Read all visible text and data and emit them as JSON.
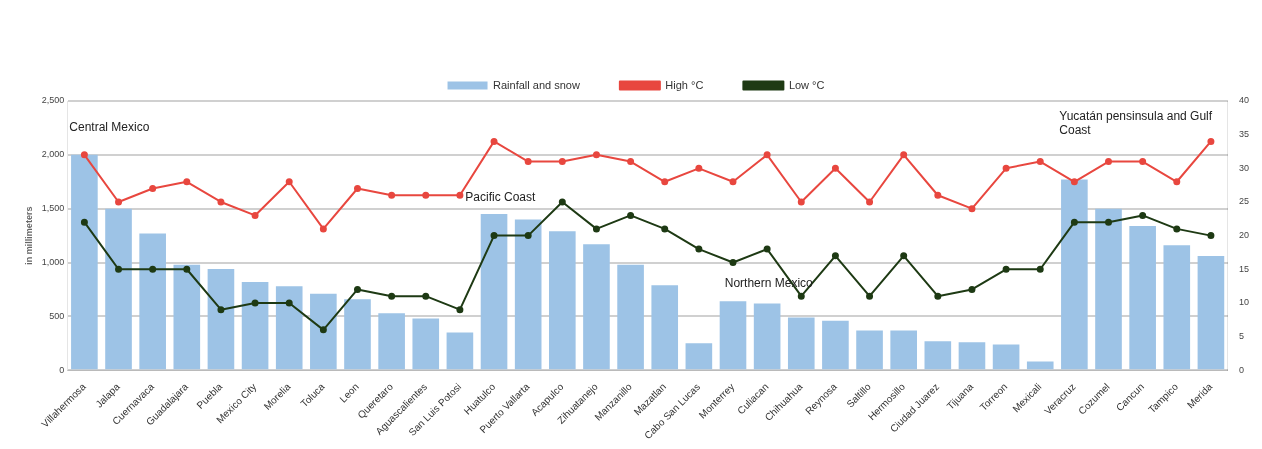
{
  "chart_data": {
    "type": "bar",
    "categories": [
      "Villahermosa",
      "Jalapa",
      "Cuernavaca",
      "Guadalajara",
      "Puebla",
      "Mexico City",
      "Morelia",
      "Toluca",
      "Leon",
      "Queretaro",
      "Aguascalientes",
      "San Luis Potosi",
      "Huatulco",
      "Puerto Vallarta",
      "Acapulco",
      "Zihuatanejo",
      "Manzanillo",
      "Mazatlan",
      "Cabo San Lucas",
      "Monterrey",
      "Culiacan",
      "Chihuahua",
      "Reynosa",
      "Saltillo",
      "Hermosillo",
      "Ciudad Juarez",
      "Tijuana",
      "Torreon",
      "Mexicali",
      "Veracruz",
      "Cozumel",
      "Cancun",
      "Tampico",
      "Merida"
    ],
    "series": [
      {
        "name": "Rainfall and snow",
        "color": "#9dc3e6",
        "values": [
          2000,
          1500,
          1270,
          980,
          940,
          820,
          780,
          710,
          660,
          530,
          480,
          350,
          1450,
          1400,
          1290,
          1170,
          980,
          790,
          250,
          640,
          620,
          490,
          460,
          370,
          370,
          270,
          260,
          240,
          80,
          1770,
          1500,
          1340,
          1160,
          1060
        ]
      },
      {
        "name": "High °C",
        "type": "line",
        "axis": "y2",
        "color": "#e8473f",
        "values": [
          32,
          25,
          27,
          28,
          25,
          23,
          28,
          21,
          27,
          26,
          26,
          26,
          34,
          31,
          31,
          32,
          31,
          28,
          30,
          28,
          32,
          25,
          30,
          25,
          32,
          26,
          24,
          30,
          31,
          28,
          31,
          31,
          28,
          34
        ]
      },
      {
        "name": "Low °C",
        "type": "line",
        "axis": "y2",
        "color": "#1e3a14",
        "values": [
          22,
          15,
          15,
          15,
          9,
          10,
          10,
          6,
          12,
          11,
          11,
          9,
          20,
          20,
          25,
          21,
          23,
          21,
          18,
          16,
          18,
          11,
          17,
          11,
          17,
          11,
          12,
          15,
          15,
          22,
          22,
          23,
          21,
          20
        ]
      }
    ],
    "ylabel": "in millimeters",
    "ylim": [
      0,
      2500
    ],
    "yticks": [
      0,
      500,
      {
        "value": 1000,
        "label": "1,000"
      },
      {
        "value": 1500,
        "label": "1,500"
      },
      {
        "value": 2000,
        "label": "2,000"
      },
      {
        "value": 2500,
        "label": "2,500"
      }
    ],
    "y2lim": [
      0,
      40
    ],
    "y2ticks": [
      0,
      5,
      10,
      15,
      20,
      25,
      30,
      35,
      40
    ],
    "annotations": [
      "Central Mexico",
      "Pacific Coast",
      "Northern Mexico",
      "Yucatán pensinsula and Gulf Coast"
    ],
    "grid": "y",
    "legend": "top",
    "marker": "circle",
    "line_style": "solid"
  }
}
